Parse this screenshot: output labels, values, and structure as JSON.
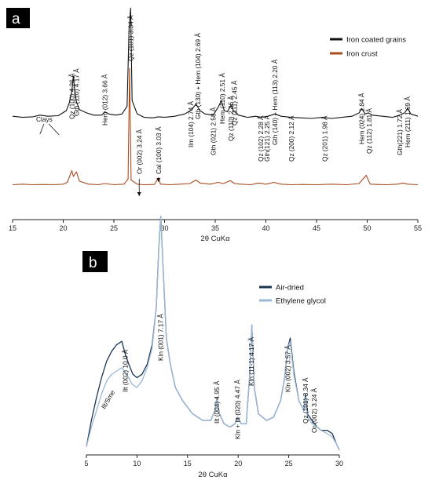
{
  "chart_data": [
    {
      "panel": "a",
      "type": "line",
      "xlabel": "2θ CuKα",
      "ylabel": "",
      "xlim": [
        15,
        55
      ],
      "xticks": [
        15,
        20,
        25,
        30,
        35,
        40,
        45,
        50,
        55
      ],
      "grid": false,
      "legend_position": "top-right",
      "series": [
        {
          "name": "Iron coated grains",
          "color": "#111111",
          "x": [
            15,
            16,
            17,
            17.7,
            18.5,
            19.5,
            20.3,
            20.6,
            20.85,
            21.0,
            21.15,
            21.3,
            21.6,
            22.3,
            23.0,
            23.8,
            24.1,
            24.5,
            25.2,
            25.8,
            26.3,
            26.5,
            26.65,
            26.8,
            27.3,
            28.0,
            28.8,
            29.4,
            30.0,
            31.0,
            32.0,
            32.7,
            33.1,
            33.5,
            34.0,
            34.8,
            35.35,
            35.6,
            35.9,
            36.2,
            36.55,
            36.8,
            37.3,
            38.2,
            39.0,
            39.5,
            40.2,
            40.9,
            41.5,
            42.5,
            43.5,
            44.5,
            45.6,
            46.5,
            47.5,
            48.5,
            49.2,
            49.45,
            49.8,
            50.1,
            50.5,
            51.5,
            52.5,
            53.2,
            53.7,
            54.0,
            54.3,
            55
          ],
          "y": [
            21,
            20,
            20.5,
            22,
            21,
            21.5,
            26,
            33,
            44,
            57,
            43,
            34,
            27,
            24,
            22,
            22,
            25,
            23,
            22,
            23,
            30,
            99,
            118,
            35,
            23,
            20,
            19.5,
            20.5,
            20,
            21,
            23,
            27,
            32,
            26,
            23,
            22,
            30,
            35,
            26,
            25,
            31,
            26,
            22,
            20,
            21,
            20,
            21,
            23,
            21,
            20,
            19.5,
            19,
            20,
            19,
            20,
            21,
            24,
            28,
            23,
            24,
            22,
            21,
            20,
            22,
            24,
            28,
            23,
            21
          ]
        },
        {
          "name": "Iron crust",
          "color": "#a84b1f",
          "x": [
            15,
            16,
            17,
            18,
            19,
            20,
            20.4,
            20.85,
            21.0,
            21.3,
            21.6,
            22.5,
            23.5,
            24.1,
            25.0,
            26.0,
            26.4,
            26.55,
            26.7,
            27.3,
            28.0,
            29.0,
            29.4,
            29.6,
            30.5,
            31.5,
            32.5,
            33.1,
            33.5,
            34.5,
            35.3,
            35.8,
            36.5,
            36.9,
            37.5,
            38.5,
            39.3,
            40.0,
            40.8,
            41.5,
            42.5,
            43.5,
            45.0,
            46.5,
            48.0,
            49.2,
            49.9,
            50.3,
            51.0,
            52.0,
            53.0,
            53.5,
            54.0,
            55
          ],
          "y": [
            3,
            3.5,
            3,
            3.2,
            3,
            3.5,
            5,
            15,
            10,
            14,
            6,
            3.5,
            3,
            4,
            3,
            3.5,
            8,
            102,
            7,
            3.5,
            3,
            3.2,
            9,
            3.5,
            3,
            3.5,
            4,
            7,
            4.5,
            3.5,
            5,
            4,
            6.5,
            4,
            3.5,
            3,
            4.5,
            3.5,
            5,
            3.5,
            3,
            3.2,
            3,
            3.5,
            3,
            4,
            11,
            3.5,
            3.2,
            3,
            3.5,
            4.5,
            3.5,
            3
          ]
        }
      ],
      "annotations": [
        {
          "text": "Clays",
          "x": 17.7
        },
        {
          "text": "Qz (100) 4.26 Å",
          "x": 20.85
        },
        {
          "text": "Gth (110) 4.17 Å",
          "x": 21.3
        },
        {
          "text": "Hem (012) 3.66 Å",
          "x": 24.1
        },
        {
          "text": "Qz (101) 3.34 Å",
          "x": 26.65
        },
        {
          "text": "Or (002) 3.24 Å",
          "x": 27.5
        },
        {
          "text": "Cal (100) 3.03 Å",
          "x": 29.4
        },
        {
          "text": "Ilm (104)  2.74 Å",
          "x": 32.6
        },
        {
          "text": "Gth (130) + Hem (104) 2.69 Å",
          "x": 33.3
        },
        {
          "text": "Gth (021) 2.58 Å",
          "x": 34.8
        },
        {
          "text": "Hem (110) 2.51 Å",
          "x": 35.7
        },
        {
          "text": "Qz (110) 2.46 Å",
          "x": 36.55
        },
        {
          "text": "Qz (111) 2.45 Å",
          "x": 36.9
        },
        {
          "text": "Qz (102) 2.28 Å",
          "x": 39.5
        },
        {
          "text": "Gth(121) 2.25 Å",
          "x": 40.1
        },
        {
          "text": "Gth (140) + Hem (113) 2.20 Å",
          "x": 40.9
        },
        {
          "text": "Qz (200) 2.12 Å",
          "x": 42.5
        },
        {
          "text": "Qz (201) 1.98 Å",
          "x": 45.8
        },
        {
          "text": "Hem (024) 1.84 Å",
          "x": 49.45
        },
        {
          "text": "Qz (112) 1.81 Å",
          "x": 50.2
        },
        {
          "text": "Gth(221) 1.72 Å",
          "x": 53.2
        },
        {
          "text": "Hem (211) 1.69 Å",
          "x": 54.0
        }
      ]
    },
    {
      "panel": "b",
      "type": "line",
      "xlabel": "2θ CuKα",
      "ylabel": "",
      "xlim": [
        5,
        30
      ],
      "xticks": [
        5,
        10,
        15,
        20,
        25,
        30
      ],
      "grid": false,
      "legend_position": "top-right",
      "series": [
        {
          "name": "Air-dried",
          "color": "#1c3553",
          "x": [
            5,
            5.5,
            6,
            6.5,
            7,
            7.5,
            8,
            8.5,
            8.85,
            9.2,
            9.6,
            10.0,
            10.5,
            11.0,
            11.5,
            11.9,
            12.15,
            12.35,
            12.6,
            12.9,
            13.3,
            13.8,
            14.5,
            15.5,
            16.5,
            17.3,
            17.7,
            17.9,
            18.15,
            18.6,
            19.2,
            19.7,
            19.95,
            20.3,
            20.8,
            21.15,
            21.35,
            21.6,
            22.0,
            22.8,
            23.5,
            24.2,
            24.6,
            24.9,
            25.15,
            25.5,
            26.0,
            26.5,
            26.65,
            26.85,
            27.3,
            27.8,
            28.2,
            28.8,
            29.3,
            29.7,
            30
          ],
          "y": [
            2,
            10,
            17,
            23,
            28,
            31,
            33,
            34,
            30,
            27,
            24,
            23,
            24,
            27,
            33,
            44,
            62,
            72,
            55,
            35,
            27,
            20,
            16,
            12,
            10,
            10,
            13,
            17,
            12,
            9,
            8,
            9,
            11,
            9,
            9,
            24,
            39,
            20,
            12,
            10,
            11,
            16,
            23,
            32,
            35,
            25,
            16,
            13,
            18,
            12,
            10,
            8,
            7,
            7,
            6,
            3,
            1
          ]
        },
        {
          "name": "Ethylene glycol",
          "color": "#9bb8d6",
          "x": [
            5,
            5.5,
            6,
            6.5,
            7,
            7.5,
            8,
            8.5,
            9.0,
            9.5,
            10.0,
            10.5,
            11.0,
            11.5,
            11.9,
            12.15,
            12.35,
            12.6,
            12.9,
            13.3,
            13.8,
            14.5,
            15.5,
            16.5,
            17.3,
            17.7,
            17.9,
            18.15,
            18.6,
            19.2,
            19.7,
            19.95,
            20.3,
            20.8,
            21.15,
            21.35,
            21.6,
            22.0,
            22.8,
            23.5,
            24.2,
            24.6,
            24.9,
            25.15,
            25.5,
            26.0,
            26.5,
            26.65,
            26.85,
            27.3,
            27.8,
            28.2,
            28.8,
            29.3,
            29.7,
            30
          ],
          "y": [
            2,
            8,
            13,
            18,
            22,
            24,
            25,
            26,
            24,
            21,
            20,
            22,
            26,
            32,
            44,
            62,
            72,
            55,
            35,
            27,
            20,
            16,
            12,
            10,
            10,
            13,
            17,
            12,
            9,
            8,
            9,
            11,
            9,
            9,
            24,
            39,
            20,
            12,
            10,
            11,
            16,
            23,
            32,
            34,
            24,
            16,
            13,
            17,
            11,
            9,
            8,
            7,
            6,
            5,
            3,
            1
          ]
        }
      ],
      "annotations": [
        {
          "text": "Ilt/Sme",
          "x": 6.6
        },
        {
          "text": "Ilt (002) 10.0 Å",
          "x": 8.85
        },
        {
          "text": "Kln (001) 7.17 Å",
          "x": 12.35
        },
        {
          "text": "Ilt (004) 4.95 Å",
          "x": 17.9
        },
        {
          "text": "Kln + Ilt (020) 4.47 Å",
          "x": 19.95
        },
        {
          "text": "Kln (11-1) 4.17 Å",
          "x": 21.3
        },
        {
          "text": "Kln (002) 3.57 Å",
          "x": 24.9
        },
        {
          "text": "Qz (101) 3.34 Å",
          "x": 26.65
        },
        {
          "text": "Or (002) 3.24 Å",
          "x": 27.5
        }
      ]
    }
  ]
}
